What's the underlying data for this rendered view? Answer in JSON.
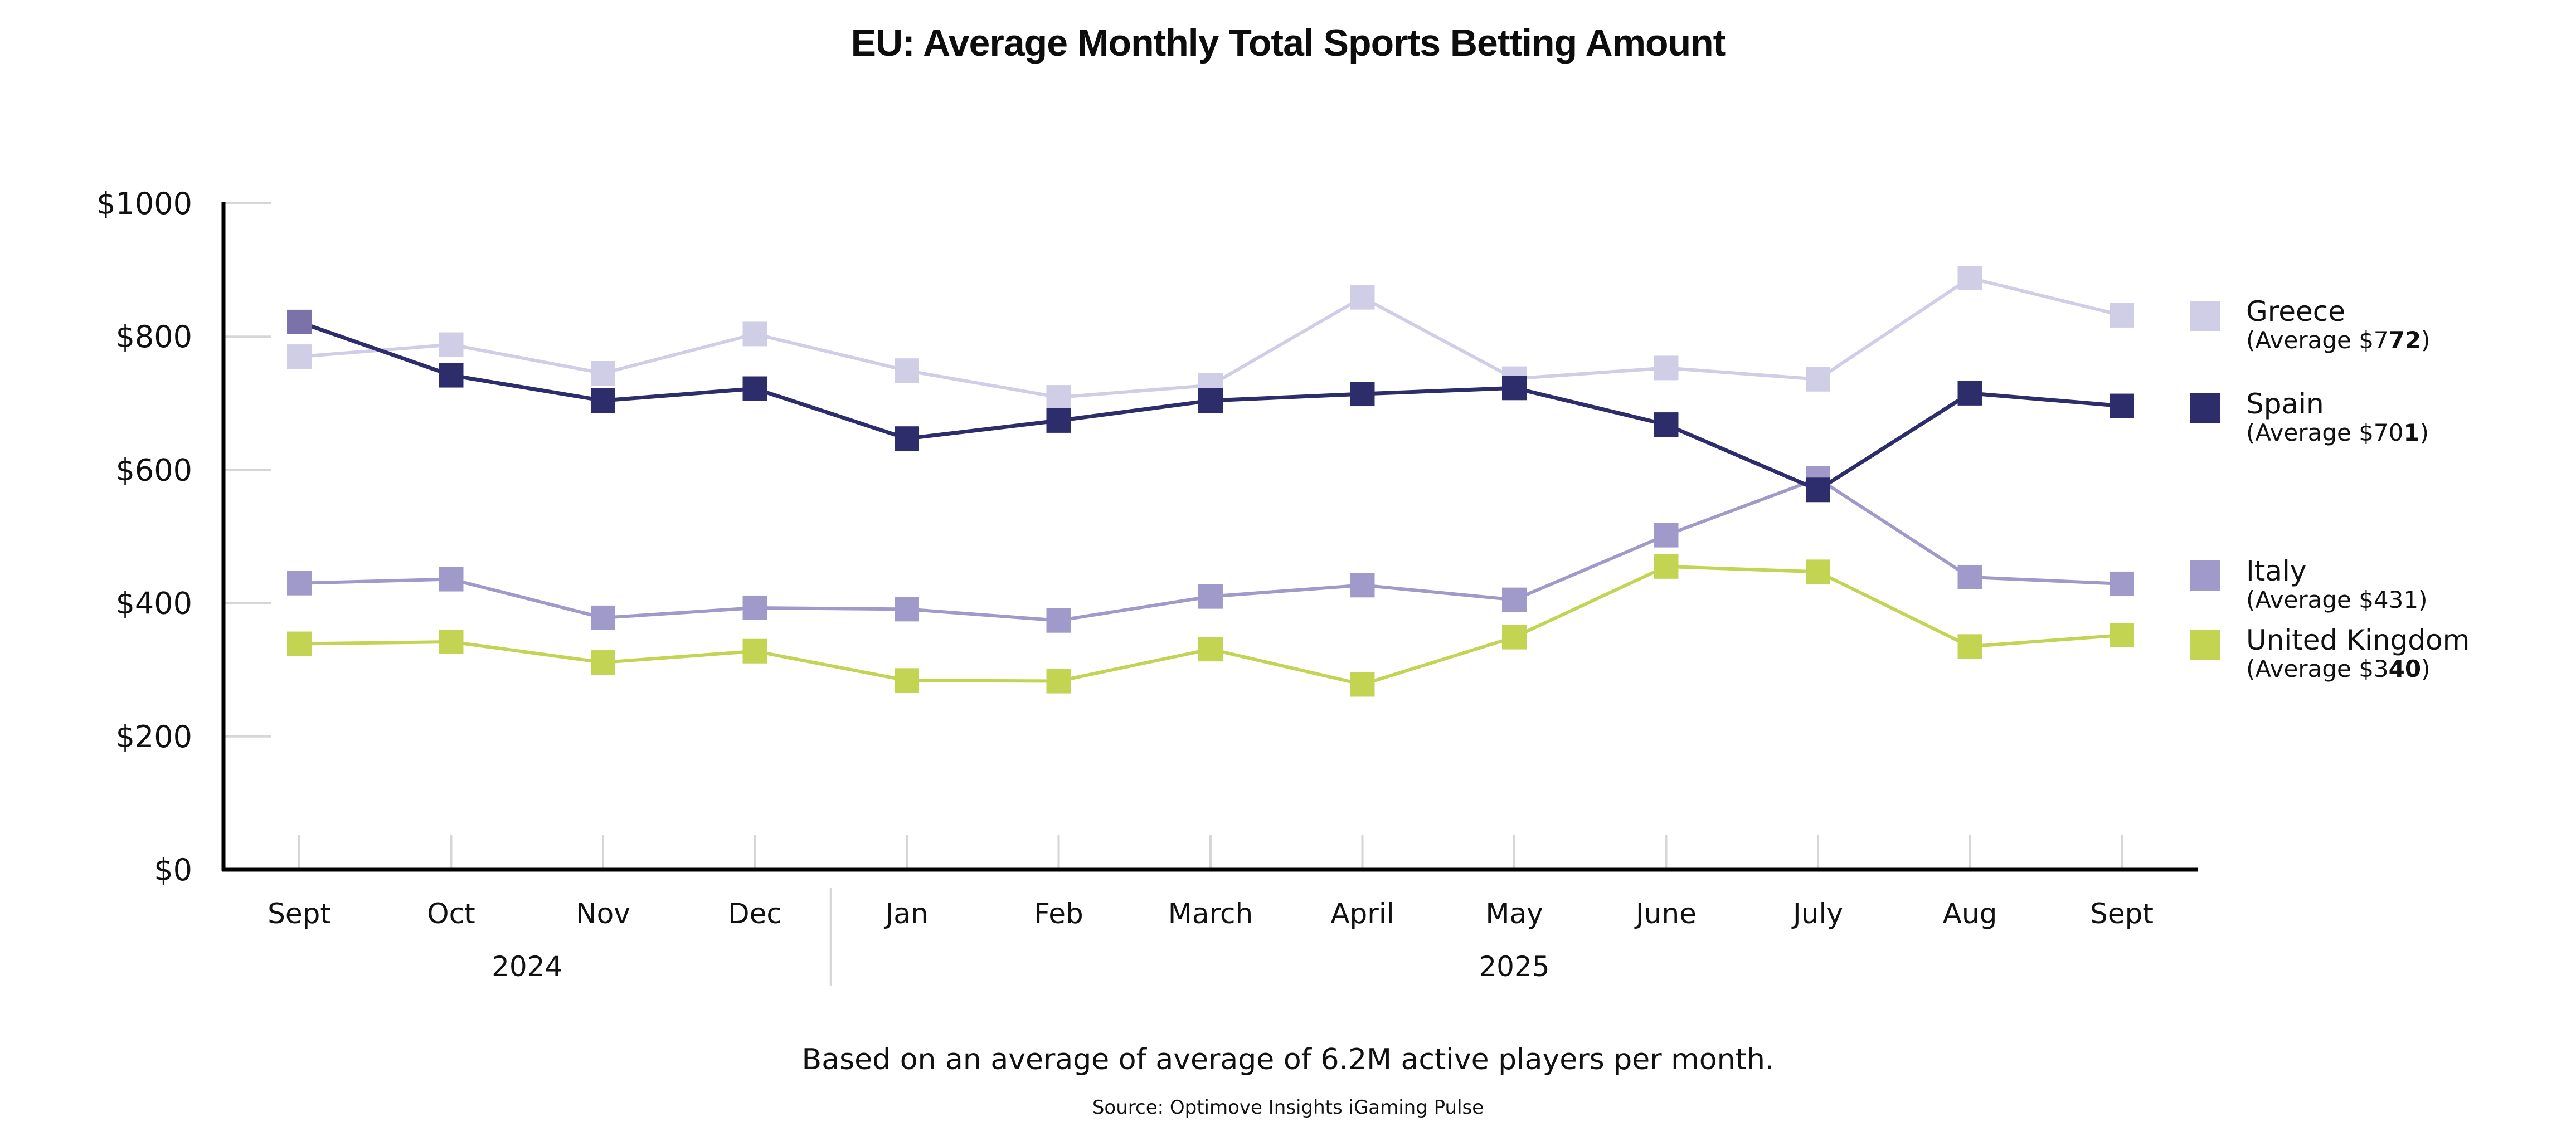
{
  "chart_data": {
    "type": "line",
    "title": "EU: Average Monthly Total Sports Betting Amount",
    "xlabel": "",
    "ylabel": "",
    "ylim": [
      0,
      1000
    ],
    "yticks": [
      0,
      200,
      400,
      600,
      800,
      1000
    ],
    "ytick_labels": [
      "$0",
      "$200",
      "$400",
      "$600",
      "$800",
      "$1000"
    ],
    "grid": "horizontal tick stubs only",
    "categories": [
      "Sept",
      "Oct",
      "Nov",
      "Dec",
      "Jan",
      "Feb",
      "March",
      "April",
      "May",
      "June",
      "July",
      "Aug",
      "Sept"
    ],
    "year_groups": [
      {
        "label": "2024",
        "start_index": 0,
        "end_index": 3
      },
      {
        "label": "2025",
        "start_index": 4,
        "end_index": 12
      }
    ],
    "legend_position": "right",
    "series": [
      {
        "name": "Greece",
        "average_label_prefix": "(Average $7",
        "average_label_bold": "72",
        "average_label_suffix": ")",
        "average": 772,
        "color": "#d0cee6",
        "values": [
          770,
          788,
          745,
          804,
          749,
          709,
          727,
          859,
          737,
          753,
          736,
          888,
          832
        ]
      },
      {
        "name": "Spain",
        "average_label_prefix": "(Average $70",
        "average_label_bold": "1",
        "average_label_suffix": ")",
        "average": 701,
        "color": "#2e2d6b",
        "first_marker_color": "#7a72a8",
        "values": [
          822,
          742,
          704,
          722,
          647,
          674,
          704,
          714,
          723,
          668,
          570,
          715,
          696
        ]
      },
      {
        "name": "Italy",
        "average_label_prefix": "(Average $431",
        "average_label_bold": "",
        "average_label_suffix": ")",
        "average": 431,
        "color": "#a09aca",
        "values": [
          430,
          436,
          378,
          393,
          391,
          374,
          410,
          427,
          405,
          502,
          587,
          439,
          429
        ]
      },
      {
        "name": "United Kingdom",
        "average_label_prefix": "(Average $3",
        "average_label_bold": "40",
        "average_label_suffix": ")",
        "average": 340,
        "color": "#c3d452",
        "values": [
          339,
          342,
          311,
          328,
          284,
          283,
          331,
          278,
          349,
          455,
          447,
          335,
          352
        ]
      }
    ],
    "footnote": "Based on an average of average of 6.2M active players per month.",
    "source": "Source: Optimove Insights iGaming Pulse"
  },
  "colors": {
    "axis": "#000000",
    "gridline": "#d6d6d6",
    "text": "#111111"
  }
}
